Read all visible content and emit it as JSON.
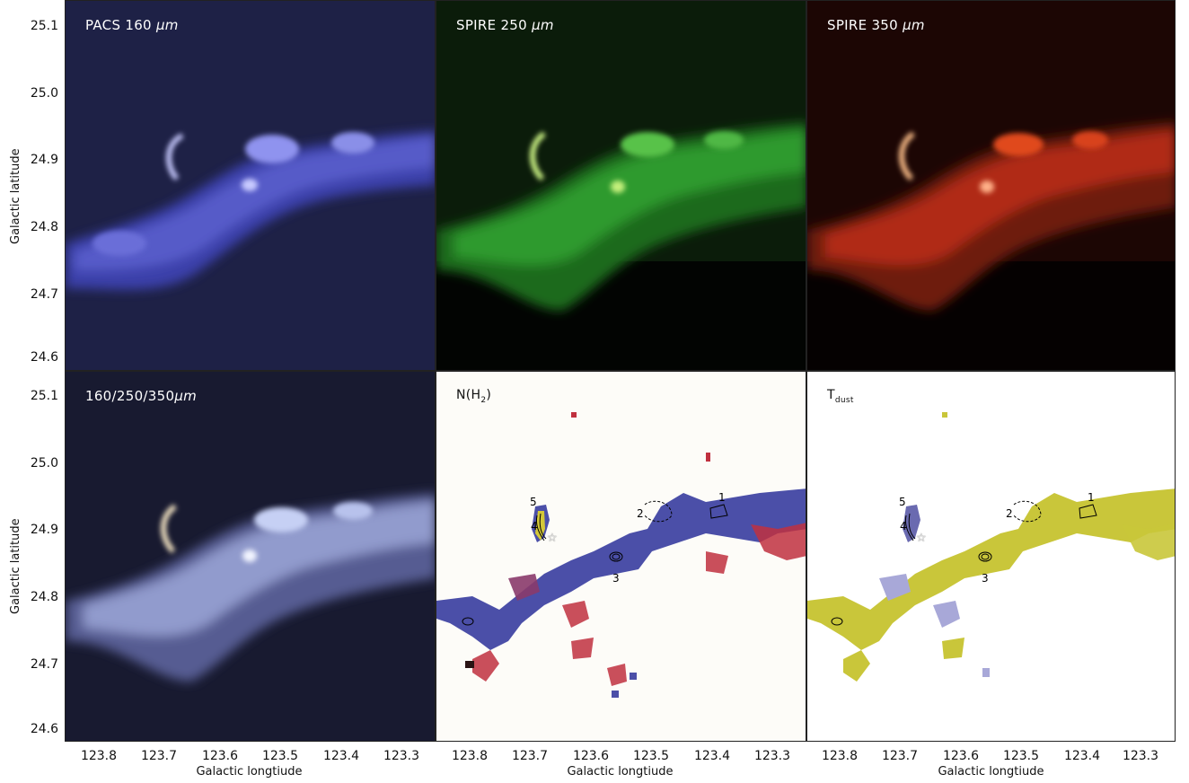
{
  "panels": [
    {
      "label": "PACS 160",
      "unit": "μm"
    },
    {
      "label": "SPIRE 250",
      "unit": "μm"
    },
    {
      "label": "SPIRE 350",
      "unit": "μm"
    },
    {
      "label": "160/250/350",
      "unit": "μm"
    },
    {
      "label": "N(H",
      "sub": "2",
      "tail": ")"
    },
    {
      "label": "T",
      "sub": "dust"
    }
  ],
  "axes": {
    "ylabel": "Galactic latitude",
    "xlabel": "Galactic longtiude",
    "yticks": [
      "25.1",
      "25.0",
      "24.9",
      "24.8",
      "24.7",
      "24.6"
    ],
    "xticks": [
      "123.8",
      "123.7",
      "123.6",
      "123.5",
      "123.4",
      "123.3"
    ]
  },
  "clumps": {
    "nh2": [
      "1",
      "2",
      "3",
      "4",
      "5"
    ],
    "tdust": [
      "1",
      "2",
      "3",
      "4",
      "5"
    ]
  },
  "colors": {
    "pacs": "#3a3fa6",
    "spire250": "#2fa23a",
    "spire350": "#d8341e",
    "composite": "#b9c3e6",
    "nh2_blue": "#4b4fa8",
    "nh2_red": "#c0303f",
    "tdust_yellow": "#c9c63a",
    "tdust_lav": "#a8a8d8"
  }
}
